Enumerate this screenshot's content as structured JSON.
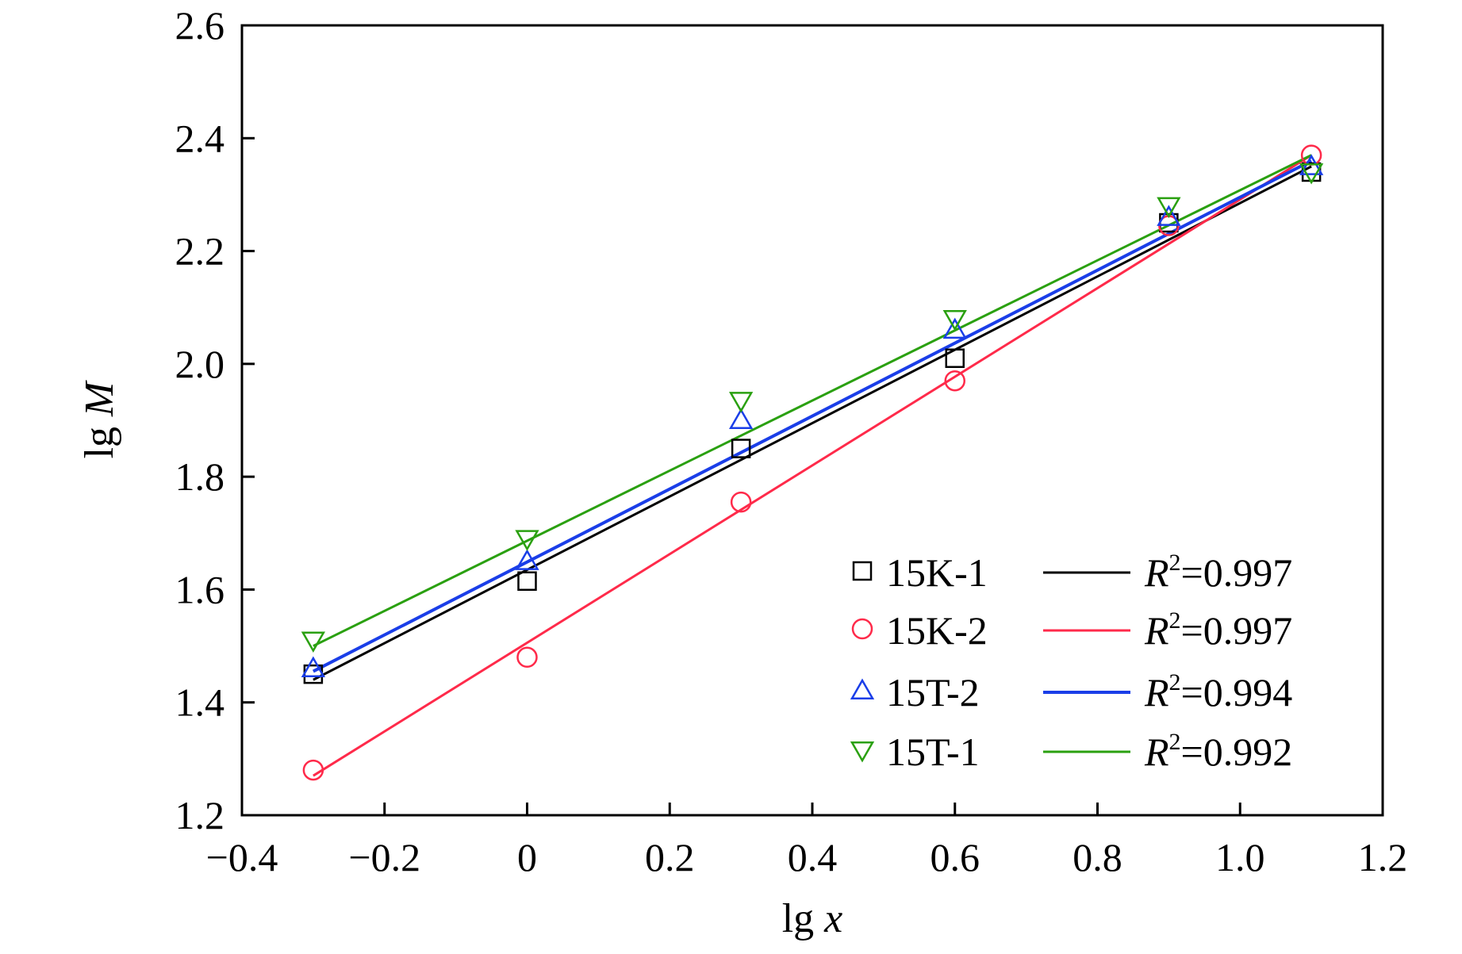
{
  "chart_data": {
    "type": "scatter",
    "xlabel": {
      "prefix": "lg ",
      "var": "x"
    },
    "ylabel": {
      "prefix": "lg ",
      "var": "M"
    },
    "xlim": [
      -0.4,
      1.2
    ],
    "ylim": [
      1.2,
      2.6
    ],
    "x_ticks": [
      -0.4,
      -0.2,
      0,
      0.2,
      0.4,
      0.6,
      0.8,
      1.0,
      1.2
    ],
    "x_tick_labels": [
      "−0.4",
      "−0.2",
      "0",
      "0.2",
      "0.4",
      "0.6",
      "0.8",
      "1.0",
      "1.2"
    ],
    "y_ticks": [
      1.2,
      1.4,
      1.6,
      1.8,
      2.0,
      2.2,
      2.4,
      2.6
    ],
    "y_tick_labels": [
      "1.2",
      "1.4",
      "1.6",
      "1.8",
      "2.0",
      "2.2",
      "2.4",
      "2.6"
    ],
    "grid": false,
    "legend_position": "bottom-right",
    "series": [
      {
        "name": "15K-1",
        "marker": "square",
        "color": "#000000",
        "x": [
          -0.3,
          0,
          0.3,
          0.6,
          0.9,
          1.1
        ],
        "y": [
          1.45,
          1.615,
          1.85,
          2.01,
          2.25,
          2.34
        ],
        "fit": {
          "x": [
            -0.3,
            1.1
          ],
          "y": [
            1.44,
            2.35
          ]
        },
        "r2_label": "R",
        "r2_sup": "2",
        "r2_value": "=0.997"
      },
      {
        "name": "15K-2",
        "marker": "circle",
        "color": "#ff2a4a",
        "x": [
          -0.3,
          0,
          0.3,
          0.6,
          0.9,
          1.1
        ],
        "y": [
          1.28,
          1.48,
          1.755,
          1.97,
          2.245,
          2.37
        ],
        "fit": {
          "x": [
            -0.3,
            1.1
          ],
          "y": [
            1.27,
            2.37
          ]
        },
        "r2_label": "R",
        "r2_sup": "2",
        "r2_value": "=0.997"
      },
      {
        "name": "15T-2",
        "marker": "triangle-up",
        "color": "#1a3ee8",
        "x": [
          -0.3,
          0,
          0.3,
          0.6,
          0.9,
          1.1
        ],
        "y": [
          1.46,
          1.65,
          1.9,
          2.06,
          2.26,
          2.35
        ],
        "fit": {
          "x": [
            -0.3,
            1.1
          ],
          "y": [
            1.455,
            2.36
          ]
        },
        "r2_label": "R",
        "r2_sup": "2",
        "r2_value": "=0.994"
      },
      {
        "name": "15T-1",
        "marker": "triangle-down",
        "color": "#2aa010",
        "x": [
          -0.3,
          0,
          0.3,
          0.6,
          0.9,
          1.1
        ],
        "y": [
          1.51,
          1.69,
          1.935,
          2.08,
          2.28,
          2.34
        ],
        "fit": {
          "x": [
            -0.3,
            1.1
          ],
          "y": [
            1.5,
            2.37
          ]
        },
        "r2_label": "R",
        "r2_sup": "2",
        "r2_value": "=0.992"
      }
    ]
  }
}
